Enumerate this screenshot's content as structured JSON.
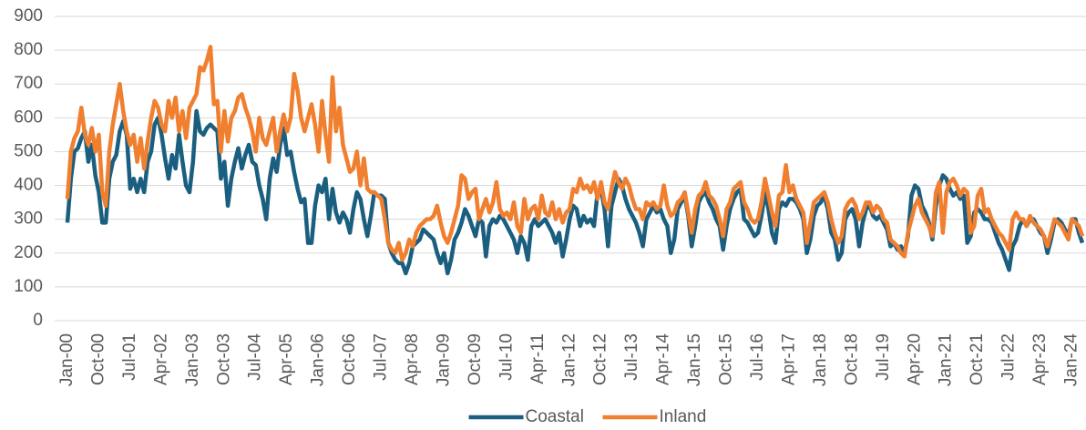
{
  "chart_data": {
    "type": "line",
    "categories": [
      "Jan-00",
      null,
      null,
      null,
      null,
      null,
      null,
      null,
      null,
      "Oct-00",
      null,
      null,
      null,
      null,
      null,
      null,
      null,
      null,
      "Jul-01",
      null,
      null,
      null,
      null,
      null,
      null,
      null,
      null,
      "Apr-02",
      null,
      null,
      null,
      null,
      null,
      null,
      null,
      null,
      "Jan-03",
      null,
      null,
      null,
      null,
      null,
      null,
      null,
      null,
      "Oct-03",
      null,
      null,
      null,
      null,
      null,
      null,
      null,
      null,
      "Jul-04",
      null,
      null,
      null,
      null,
      null,
      null,
      null,
      null,
      "Apr-05",
      null,
      null,
      null,
      null,
      null,
      null,
      null,
      null,
      "Jan-06",
      null,
      null,
      null,
      null,
      null,
      null,
      null,
      null,
      "Oct-06",
      null,
      null,
      null,
      null,
      null,
      null,
      null,
      null,
      "Jul-07",
      null,
      null,
      null,
      null,
      null,
      null,
      null,
      null,
      "Apr-08",
      null,
      null,
      null,
      null,
      null,
      null,
      null,
      null,
      "Jan-09",
      null,
      null,
      null,
      null,
      null,
      null,
      null,
      null,
      "Oct-09",
      null,
      null,
      null,
      null,
      null,
      null,
      null,
      null,
      "Jul-10",
      null,
      null,
      null,
      null,
      null,
      null,
      null,
      null,
      "Apr-11",
      null,
      null,
      null,
      null,
      null,
      null,
      null,
      null,
      "Jan-12",
      null,
      null,
      null,
      null,
      null,
      null,
      null,
      null,
      "Oct-12",
      null,
      null,
      null,
      null,
      null,
      null,
      null,
      null,
      "Jul-13",
      null,
      null,
      null,
      null,
      null,
      null,
      null,
      null,
      "Apr-14",
      null,
      null,
      null,
      null,
      null,
      null,
      null,
      null,
      "Jan-15",
      null,
      null,
      null,
      null,
      null,
      null,
      null,
      null,
      "Oct-15",
      null,
      null,
      null,
      null,
      null,
      null,
      null,
      null,
      "Jul-16",
      null,
      null,
      null,
      null,
      null,
      null,
      null,
      null,
      "Apr-17",
      null,
      null,
      null,
      null,
      null,
      null,
      null,
      null,
      "Jan-18",
      null,
      null,
      null,
      null,
      null,
      null,
      null,
      null,
      "Oct-18",
      null,
      null,
      null,
      null,
      null,
      null,
      null,
      null,
      "Jul-19",
      null,
      null,
      null,
      null,
      null,
      null,
      null,
      null,
      "Apr-20",
      null,
      null,
      null,
      null,
      null,
      null,
      null,
      null,
      "Jan-21",
      null,
      null,
      null,
      null,
      null,
      null,
      null,
      null,
      "Oct-21",
      null,
      null,
      null,
      null,
      null,
      null,
      null,
      null,
      "Jul-22",
      null,
      null,
      null,
      null,
      null,
      null,
      null,
      null,
      "Apr-23",
      null,
      null,
      null,
      null,
      null,
      null,
      null,
      null,
      "Jan-24",
      null,
      null,
      null
    ],
    "series": [
      {
        "name": "Coastal",
        "color": "#1b5f80",
        "values": [
          290,
          420,
          500,
          510,
          540,
          560,
          470,
          520,
          430,
          380,
          290,
          290,
          420,
          470,
          490,
          560,
          590,
          550,
          390,
          420,
          380,
          420,
          380,
          470,
          500,
          580,
          600,
          550,
          480,
          420,
          490,
          450,
          550,
          470,
          400,
          380,
          470,
          620,
          560,
          550,
          570,
          580,
          570,
          560,
          420,
          470,
          340,
          420,
          470,
          510,
          450,
          490,
          520,
          470,
          460,
          400,
          360,
          300,
          420,
          480,
          440,
          520,
          570,
          490,
          500,
          440,
          390,
          350,
          360,
          230,
          230,
          340,
          400,
          380,
          420,
          300,
          390,
          320,
          290,
          320,
          300,
          260,
          330,
          380,
          360,
          300,
          250,
          310,
          380,
          370,
          370,
          360,
          230,
          200,
          180,
          170,
          170,
          140,
          170,
          220,
          230,
          240,
          270,
          260,
          250,
          240,
          200,
          170,
          200,
          140,
          180,
          240,
          260,
          290,
          330,
          310,
          280,
          250,
          300,
          290,
          190,
          280,
          300,
          290,
          310,
          300,
          280,
          260,
          240,
          200,
          250,
          230,
          180,
          280,
          300,
          280,
          290,
          300,
          280,
          260,
          230,
          260,
          190,
          240,
          300,
          340,
          330,
          280,
          310,
          290,
          300,
          280,
          380,
          390,
          330,
          220,
          340,
          380,
          420,
          400,
          360,
          330,
          310,
          290,
          260,
          220,
          300,
          320,
          340,
          320,
          330,
          300,
          280,
          200,
          240,
          330,
          350,
          370,
          310,
          220,
          280,
          350,
          370,
          380,
          350,
          330,
          300,
          280,
          210,
          280,
          330,
          360,
          380,
          390,
          300,
          290,
          270,
          250,
          260,
          310,
          380,
          330,
          260,
          230,
          330,
          350,
          340,
          360,
          360,
          350,
          330,
          300,
          200,
          240,
          310,
          340,
          350,
          370,
          330,
          260,
          240,
          180,
          200,
          300,
          320,
          330,
          300,
          220,
          290,
          330,
          340,
          310,
          300,
          310,
          290,
          270,
          220,
          230,
          210,
          220,
          200,
          250,
          370,
          400,
          390,
          340,
          320,
          290,
          240,
          340,
          400,
          430,
          420,
          390,
          370,
          380,
          360,
          370,
          230,
          250,
          320,
          330,
          320,
          300,
          300,
          290,
          260,
          230,
          210,
          180,
          150,
          220,
          240,
          280,
          300,
          280,
          300,
          300,
          280,
          260,
          250,
          200,
          240,
          290,
          300,
          290,
          270,
          250,
          300,
          300,
          260,
          230
        ]
      },
      {
        "name": "Inland",
        "color": "#f07f2f",
        "values": [
          360,
          500,
          540,
          560,
          630,
          550,
          520,
          570,
          500,
          550,
          380,
          340,
          500,
          580,
          640,
          700,
          620,
          560,
          520,
          550,
          470,
          540,
          450,
          530,
          600,
          650,
          630,
          580,
          560,
          650,
          600,
          660,
          560,
          620,
          540,
          630,
          650,
          670,
          750,
          740,
          770,
          810,
          640,
          650,
          500,
          620,
          530,
          600,
          620,
          660,
          670,
          630,
          600,
          560,
          500,
          600,
          540,
          520,
          560,
          600,
          500,
          560,
          610,
          560,
          600,
          730,
          680,
          600,
          560,
          600,
          640,
          580,
          500,
          650,
          550,
          470,
          720,
          560,
          630,
          520,
          480,
          440,
          450,
          500,
          400,
          480,
          390,
          380,
          380,
          370,
          360,
          300,
          230,
          210,
          200,
          230,
          180,
          200,
          240,
          220,
          260,
          280,
          290,
          300,
          300,
          310,
          340,
          290,
          250,
          230,
          260,
          300,
          340,
          430,
          420,
          360,
          380,
          390,
          300,
          330,
          360,
          320,
          350,
          410,
          330,
          310,
          320,
          300,
          350,
          280,
          260,
          360,
          300,
          330,
          340,
          300,
          370,
          320,
          310,
          350,
          300,
          330,
          290,
          320,
          330,
          390,
          380,
          420,
          390,
          400,
          380,
          410,
          360,
          410,
          350,
          330,
          390,
          440,
          410,
          390,
          420,
          400,
          360,
          330,
          330,
          300,
          350,
          340,
          350,
          330,
          340,
          400,
          340,
          310,
          320,
          350,
          360,
          380,
          320,
          260,
          330,
          370,
          380,
          410,
          370,
          360,
          340,
          300,
          250,
          330,
          350,
          390,
          400,
          410,
          350,
          330,
          300,
          290,
          300,
          350,
          420,
          370,
          320,
          280,
          370,
          380,
          460,
          380,
          400,
          360,
          340,
          320,
          230,
          290,
          350,
          360,
          370,
          380,
          350,
          300,
          260,
          230,
          250,
          330,
          350,
          360,
          340,
          300,
          320,
          350,
          350,
          320,
          340,
          330,
          300,
          290,
          240,
          230,
          220,
          200,
          190,
          260,
          300,
          340,
          360,
          320,
          300,
          280,
          250,
          380,
          410,
          260,
          380,
          410,
          420,
          400,
          370,
          390,
          380,
          260,
          280,
          370,
          390,
          320,
          330,
          300,
          280,
          260,
          250,
          230,
          210,
          300,
          320,
          300,
          300,
          280,
          310,
          290,
          280,
          270,
          250,
          220,
          260,
          300,
          290,
          280,
          260,
          240,
          300,
          290,
          280,
          250
        ]
      }
    ],
    "ylim": [
      0,
      900
    ],
    "yticks": [
      0,
      100,
      200,
      300,
      400,
      500,
      600,
      700,
      800,
      900
    ],
    "grid": true,
    "legend": "bottom"
  }
}
